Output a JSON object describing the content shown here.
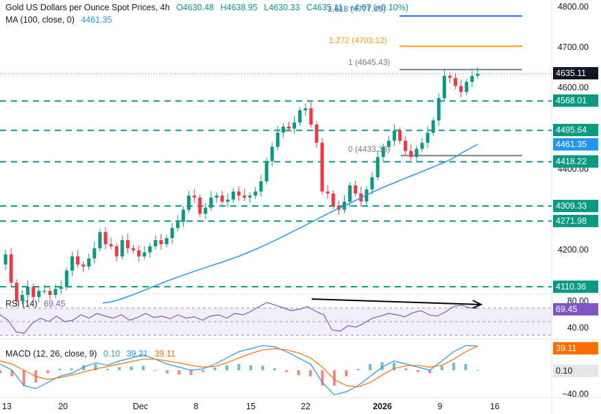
{
  "header": {
    "title": "Gold US Dollars per Ounce Spot Prices, 4h",
    "open": "O4630.48",
    "high": "H4638.95",
    "low": "L4630.33",
    "close": "C4635.11",
    "change": "+4.67 (+0.10%)",
    "ma_label": "MA (100, close, 0)",
    "ma_value": "4461.35"
  },
  "fib_labels": {
    "f1618": "1.618 (4777.49)",
    "f1272": "1.272 (4703.12)",
    "f1": "1 (4645.43)",
    "f0": "0 (4433.36)"
  },
  "price_axis": [
    "4800.00",
    "4700.00",
    "4600.00",
    "4400.00",
    "4200.00"
  ],
  "price_boxes": {
    "last": "4635.11",
    "s1": "4568.01",
    "s2": "4495.64",
    "ma": "4461.35",
    "s3": "4418.22",
    "s4": "4309.33",
    "s5": "4271.98",
    "s6": "4110.36"
  },
  "rsi": {
    "label": "RSI (14)",
    "value": "69.45",
    "axis_top": "80.00",
    "axis_bottom": "40.00"
  },
  "macd": {
    "label": "MACD (12, 26, close, 9)",
    "hist": "0.10",
    "macd": "39.21",
    "signal": "39.11",
    "axis_bottom": "−40.00"
  },
  "x_axis": [
    "13",
    "20",
    "Dec",
    "8",
    "15",
    "22",
    "2026",
    "9",
    "16"
  ],
  "colors": {
    "up": "#089981",
    "down": "#f23645",
    "ma": "#2196f3",
    "rsi": "#7e57c2",
    "macd": "#2196f3",
    "signal": "#ff6d00",
    "fib1618": "#2962ff",
    "fib1272": "#ff9800",
    "fib1": "#787b86"
  },
  "chart_data": {
    "type": "line",
    "title": "Gold US Dollars per Ounce Spot Prices, 4h",
    "ylim": [
      4070,
      4830
    ],
    "horizontal_levels": [
      4568.01,
      4495.64,
      4418.22,
      4309.33,
      4271.98,
      4110.36
    ],
    "fib_levels": [
      {
        "name": "1.618",
        "value": 4777.49
      },
      {
        "name": "1.272",
        "value": 4703.12
      },
      {
        "name": "1",
        "value": 4645.43
      },
      {
        "name": "0",
        "value": 4433.36
      }
    ],
    "price": [
      4165,
      4190,
      4120,
      4075,
      4090,
      4110,
      4085,
      4100,
      4100,
      4090,
      4105,
      4110,
      4150,
      4185,
      4165,
      4160,
      4180,
      4205,
      4245,
      4215,
      4210,
      4185,
      4225,
      4205,
      4200,
      4185,
      4195,
      4210,
      4225,
      4215,
      4230,
      4255,
      4270,
      4300,
      4335,
      4330,
      4290,
      4305,
      4330,
      4335,
      4320,
      4325,
      4345,
      4335,
      4330,
      4335,
      4345,
      4370,
      4420,
      4455,
      4490,
      4505,
      4500,
      4515,
      4545,
      4550,
      4510,
      4465,
      4345,
      4340,
      4310,
      4300,
      4320,
      4360,
      4340,
      4320,
      4350,
      4380,
      4430,
      4455,
      4470,
      4495,
      4470,
      4445,
      4430,
      4450,
      4465,
      4490,
      4520,
      4575,
      4630,
      4625,
      4605,
      4590,
      4615,
      4630,
      4635
    ],
    "ma100": [
      4070,
      4073,
      4078,
      4085,
      4092,
      4100,
      4108,
      4116,
      4124,
      4131,
      4138,
      4145,
      4152,
      4158,
      4165,
      4171,
      4178,
      4185,
      4193,
      4201,
      4210,
      4219,
      4228,
      4238,
      4248,
      4258,
      4268,
      4278,
      4288,
      4298,
      4307,
      4316,
      4326,
      4336,
      4345,
      4354,
      4362,
      4370,
      4378,
      4386,
      4394,
      4402,
      4410,
      4418,
      4428,
      4440,
      4451,
      4461
    ],
    "rsi": [
      60,
      52,
      35,
      33,
      48,
      55,
      50,
      58,
      50,
      52,
      60,
      55,
      62,
      58,
      55,
      60,
      52,
      56,
      62,
      56,
      58,
      54,
      60,
      55,
      57,
      52,
      58,
      60,
      55,
      62,
      60,
      65,
      72,
      78,
      74,
      70,
      66,
      68,
      72,
      65,
      60,
      38,
      36,
      44,
      42,
      48,
      55,
      58,
      62,
      60,
      57,
      63,
      66,
      60,
      58,
      64,
      72,
      74,
      70,
      69.45
    ],
    "macd": [
      10,
      0,
      -25,
      -30,
      -20,
      -10,
      -5,
      5,
      12,
      8,
      15,
      20,
      25,
      18,
      10,
      5,
      0,
      2,
      10,
      20,
      30,
      35,
      40,
      38,
      30,
      20,
      10,
      -20,
      -40,
      -35,
      -25,
      -10,
      5,
      15,
      10,
      5,
      0,
      15,
      30,
      40,
      39.21
    ],
    "signal": [
      15,
      10,
      0,
      -10,
      -15,
      -12,
      -8,
      -3,
      2,
      6,
      10,
      14,
      18,
      18,
      15,
      12,
      8,
      5,
      6,
      12,
      20,
      27,
      33,
      35,
      33,
      28,
      20,
      5,
      -15,
      -25,
      -27,
      -20,
      -8,
      3,
      7,
      8,
      5,
      8,
      18,
      30,
      39.11
    ]
  }
}
